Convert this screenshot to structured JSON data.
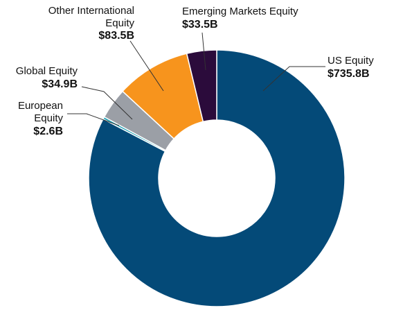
{
  "chart_data": {
    "type": "pie",
    "donut": true,
    "unit": "B",
    "slices": [
      {
        "name": "US Equity",
        "value": 735.8,
        "label": "$735.8B",
        "color": "#044a78"
      },
      {
        "name": "European Equity",
        "value": 2.6,
        "label": "$2.6B",
        "color": "#18a0b4"
      },
      {
        "name": "Global Equity",
        "value": 34.9,
        "label": "$34.9B",
        "color": "#9b9fa6"
      },
      {
        "name": "Other International Equity",
        "value": 83.5,
        "label": "$83.5B",
        "color": "#f7941d"
      },
      {
        "name": "Emerging Markets Equity",
        "value": 33.5,
        "label": "$33.5B",
        "color": "#2b0b3b"
      }
    ]
  },
  "labels": {
    "us": {
      "line1": "US Equity",
      "value": "$735.8B"
    },
    "european": {
      "line1": "European",
      "line2": "Equity",
      "value": "$2.6B"
    },
    "global": {
      "line1": "Global Equity",
      "value": "$34.9B"
    },
    "other": {
      "line1": "Other International",
      "line2": "Equity",
      "value": "$83.5B"
    },
    "emerging": {
      "line1": "Emerging Markets Equity",
      "value": "$33.5B"
    }
  }
}
